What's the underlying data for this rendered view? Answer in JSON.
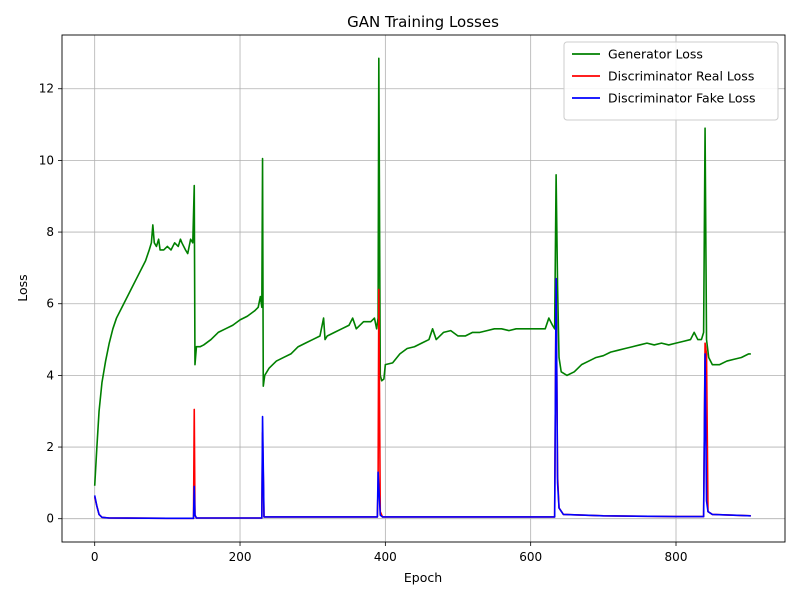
{
  "chart_data": {
    "type": "line",
    "title": "GAN Training Losses",
    "xlabel": "Epoch",
    "ylabel": "Loss",
    "xlim": [
      -45,
      950
    ],
    "ylim": [
      -0.65,
      13.5
    ],
    "x_ticks": [
      0,
      200,
      400,
      600,
      800
    ],
    "x_tick_labels": [
      "0",
      "200",
      "400",
      "600",
      "800"
    ],
    "y_ticks": [
      0,
      2,
      4,
      6,
      8,
      10,
      12
    ],
    "y_tick_labels": [
      "0",
      "2",
      "4",
      "6",
      "8",
      "10",
      "12"
    ],
    "grid": true,
    "legend_position": "top-right",
    "series": [
      {
        "name": "Generator Loss",
        "color": "#008000",
        "points": [
          [
            0,
            0.92
          ],
          [
            3,
            2.0
          ],
          [
            6,
            3.0
          ],
          [
            10,
            3.8
          ],
          [
            15,
            4.4
          ],
          [
            20,
            4.9
          ],
          [
            25,
            5.3
          ],
          [
            30,
            5.6
          ],
          [
            40,
            6.0
          ],
          [
            50,
            6.4
          ],
          [
            60,
            6.8
          ],
          [
            70,
            7.2
          ],
          [
            75,
            7.5
          ],
          [
            78,
            7.7
          ],
          [
            80,
            8.2
          ],
          [
            82,
            7.7
          ],
          [
            85,
            7.6
          ],
          [
            88,
            7.8
          ],
          [
            90,
            7.5
          ],
          [
            95,
            7.5
          ],
          [
            100,
            7.6
          ],
          [
            105,
            7.5
          ],
          [
            110,
            7.7
          ],
          [
            115,
            7.6
          ],
          [
            118,
            7.8
          ],
          [
            120,
            7.7
          ],
          [
            125,
            7.5
          ],
          [
            128,
            7.4
          ],
          [
            132,
            7.8
          ],
          [
            135,
            7.7
          ],
          [
            137,
            9.3
          ],
          [
            138,
            4.3
          ],
          [
            140,
            4.8
          ],
          [
            145,
            4.8
          ],
          [
            150,
            4.85
          ],
          [
            160,
            5.0
          ],
          [
            170,
            5.2
          ],
          [
            180,
            5.3
          ],
          [
            190,
            5.4
          ],
          [
            200,
            5.55
          ],
          [
            210,
            5.65
          ],
          [
            220,
            5.8
          ],
          [
            225,
            5.9
          ],
          [
            228,
            6.2
          ],
          [
            230,
            5.9
          ],
          [
            231,
            10.05
          ],
          [
            232,
            3.7
          ],
          [
            234,
            4.0
          ],
          [
            240,
            4.2
          ],
          [
            250,
            4.4
          ],
          [
            260,
            4.5
          ],
          [
            270,
            4.6
          ],
          [
            280,
            4.8
          ],
          [
            290,
            4.9
          ],
          [
            300,
            5.0
          ],
          [
            310,
            5.1
          ],
          [
            315,
            5.6
          ],
          [
            317,
            5.0
          ],
          [
            320,
            5.1
          ],
          [
            330,
            5.2
          ],
          [
            340,
            5.3
          ],
          [
            350,
            5.4
          ],
          [
            355,
            5.6
          ],
          [
            360,
            5.3
          ],
          [
            370,
            5.5
          ],
          [
            380,
            5.5
          ],
          [
            385,
            5.6
          ],
          [
            388,
            5.3
          ],
          [
            390,
            5.6
          ],
          [
            391,
            12.85
          ],
          [
            393,
            4.0
          ],
          [
            395,
            3.85
          ],
          [
            398,
            3.9
          ],
          [
            400,
            4.3
          ],
          [
            410,
            4.35
          ],
          [
            420,
            4.6
          ],
          [
            430,
            4.75
          ],
          [
            440,
            4.8
          ],
          [
            450,
            4.9
          ],
          [
            460,
            5.0
          ],
          [
            465,
            5.3
          ],
          [
            470,
            5.0
          ],
          [
            480,
            5.2
          ],
          [
            490,
            5.25
          ],
          [
            500,
            5.1
          ],
          [
            510,
            5.1
          ],
          [
            520,
            5.2
          ],
          [
            530,
            5.2
          ],
          [
            540,
            5.25
          ],
          [
            550,
            5.3
          ],
          [
            560,
            5.3
          ],
          [
            570,
            5.25
          ],
          [
            580,
            5.3
          ],
          [
            590,
            5.3
          ],
          [
            600,
            5.3
          ],
          [
            610,
            5.3
          ],
          [
            620,
            5.3
          ],
          [
            625,
            5.6
          ],
          [
            630,
            5.4
          ],
          [
            633,
            5.3
          ],
          [
            635,
            9.6
          ],
          [
            637,
            6.5
          ],
          [
            639,
            4.5
          ],
          [
            642,
            4.1
          ],
          [
            650,
            4.0
          ],
          [
            660,
            4.1
          ],
          [
            670,
            4.3
          ],
          [
            680,
            4.4
          ],
          [
            690,
            4.5
          ],
          [
            700,
            4.55
          ],
          [
            710,
            4.65
          ],
          [
            720,
            4.7
          ],
          [
            730,
            4.75
          ],
          [
            740,
            4.8
          ],
          [
            750,
            4.85
          ],
          [
            760,
            4.9
          ],
          [
            770,
            4.85
          ],
          [
            780,
            4.9
          ],
          [
            790,
            4.85
          ],
          [
            800,
            4.9
          ],
          [
            810,
            4.95
          ],
          [
            820,
            5.0
          ],
          [
            825,
            5.2
          ],
          [
            830,
            5.0
          ],
          [
            835,
            5.0
          ],
          [
            838,
            5.2
          ],
          [
            840,
            10.9
          ],
          [
            842,
            5.0
          ],
          [
            845,
            4.5
          ],
          [
            850,
            4.3
          ],
          [
            860,
            4.3
          ],
          [
            870,
            4.4
          ],
          [
            880,
            4.45
          ],
          [
            890,
            4.5
          ],
          [
            900,
            4.6
          ],
          [
            903,
            4.6
          ]
        ]
      },
      {
        "name": "Discriminator Real Loss",
        "color": "#ff0000",
        "points": [
          [
            0,
            0.6
          ],
          [
            3,
            0.35
          ],
          [
            6,
            0.12
          ],
          [
            10,
            0.04
          ],
          [
            20,
            0.02
          ],
          [
            100,
            0.01
          ],
          [
            136,
            0.01
          ],
          [
            137,
            3.05
          ],
          [
            138,
            0.1
          ],
          [
            140,
            0.02
          ],
          [
            200,
            0.02
          ],
          [
            230,
            0.02
          ],
          [
            231,
            2.4
          ],
          [
            233,
            0.05
          ],
          [
            300,
            0.05
          ],
          [
            389,
            0.05
          ],
          [
            390,
            0.9
          ],
          [
            391,
            6.4
          ],
          [
            393,
            0.2
          ],
          [
            396,
            0.05
          ],
          [
            500,
            0.05
          ],
          [
            633,
            0.05
          ],
          [
            635,
            6.7
          ],
          [
            637,
            1.2
          ],
          [
            639,
            0.3
          ],
          [
            645,
            0.12
          ],
          [
            700,
            0.08
          ],
          [
            800,
            0.06
          ],
          [
            838,
            0.06
          ],
          [
            840,
            4.9
          ],
          [
            842,
            4.6
          ],
          [
            844,
            0.2
          ],
          [
            850,
            0.12
          ],
          [
            903,
            0.08
          ]
        ]
      },
      {
        "name": "Discriminator Fake Loss",
        "color": "#0000ff",
        "points": [
          [
            0,
            0.65
          ],
          [
            3,
            0.35
          ],
          [
            6,
            0.12
          ],
          [
            10,
            0.04
          ],
          [
            20,
            0.02
          ],
          [
            100,
            0.01
          ],
          [
            136,
            0.01
          ],
          [
            137,
            0.9
          ],
          [
            138,
            0.1
          ],
          [
            140,
            0.02
          ],
          [
            200,
            0.02
          ],
          [
            230,
            0.02
          ],
          [
            231,
            2.85
          ],
          [
            233,
            0.05
          ],
          [
            300,
            0.05
          ],
          [
            389,
            0.05
          ],
          [
            390,
            1.3
          ],
          [
            391,
            0.9
          ],
          [
            393,
            0.1
          ],
          [
            396,
            0.05
          ],
          [
            500,
            0.05
          ],
          [
            633,
            0.05
          ],
          [
            635,
            6.7
          ],
          [
            637,
            1.0
          ],
          [
            639,
            0.3
          ],
          [
            645,
            0.12
          ],
          [
            700,
            0.08
          ],
          [
            800,
            0.06
          ],
          [
            838,
            0.06
          ],
          [
            840,
            4.6
          ],
          [
            842,
            0.5
          ],
          [
            844,
            0.2
          ],
          [
            850,
            0.12
          ],
          [
            903,
            0.08
          ]
        ]
      }
    ]
  }
}
